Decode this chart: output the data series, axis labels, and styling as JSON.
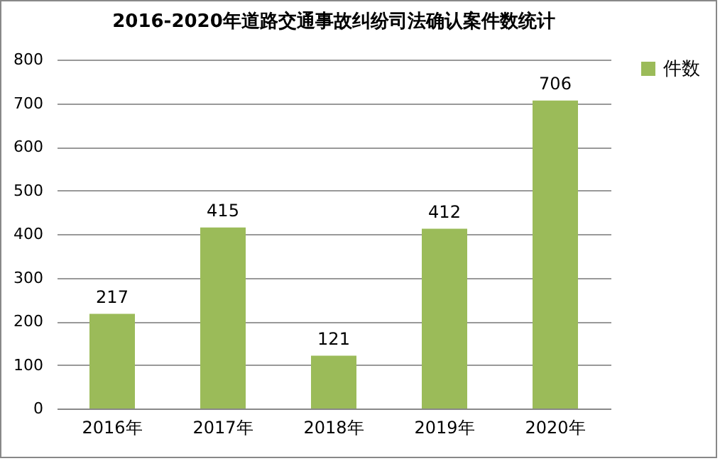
{
  "chart_data": {
    "type": "bar",
    "title": "2016-2020年道路交通事故纠纷司法确认案件数统计",
    "categories": [
      "2016年",
      "2017年",
      "2018年",
      "2019年",
      "2020年"
    ],
    "series": [
      {
        "name": "件数",
        "color": "#9bbb59",
        "values": [
          217,
          415,
          121,
          412,
          706
        ]
      }
    ],
    "ylim": [
      0,
      800
    ],
    "yticks": [
      0,
      100,
      200,
      300,
      400,
      500,
      600,
      700,
      800
    ],
    "grid": "y",
    "legend": "right",
    "data_labels": true
  }
}
